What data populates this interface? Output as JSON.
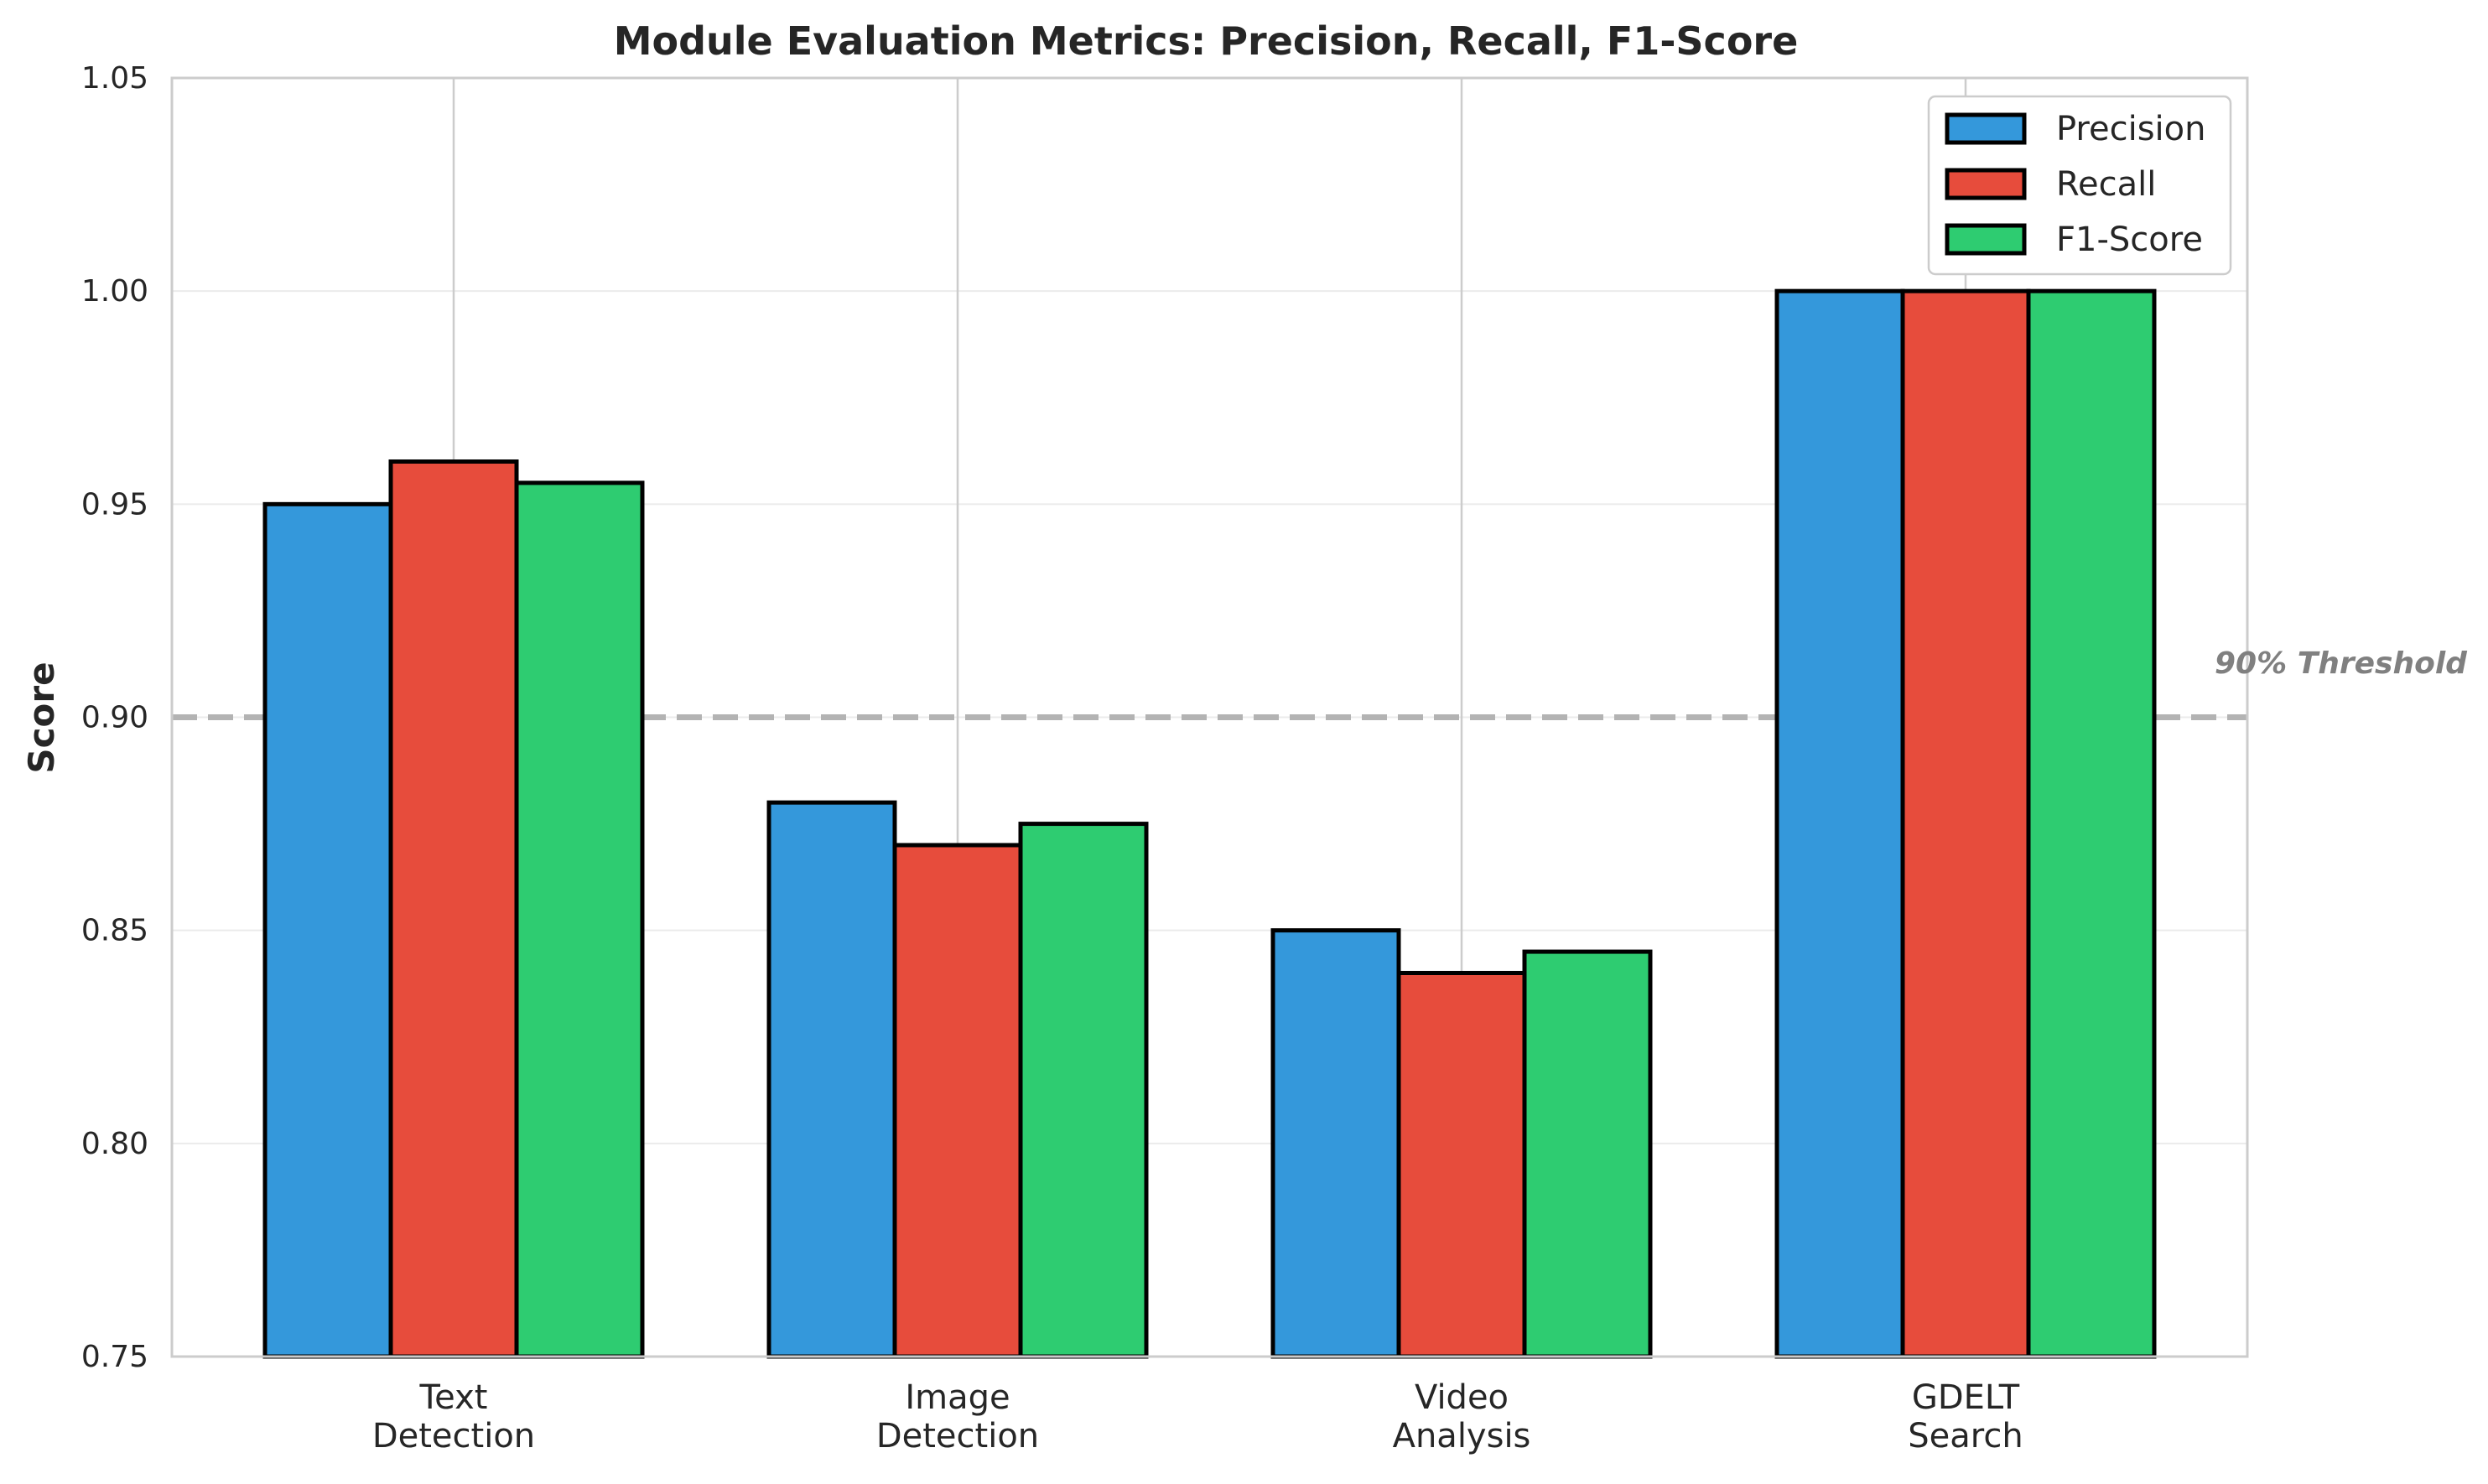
{
  "chart_data": {
    "type": "bar",
    "title": "Module Evaluation Metrics: Precision, Recall, F1-Score",
    "xlabel": "",
    "ylabel": "Score",
    "ylim": [
      0.75,
      1.05
    ],
    "yticks": [
      "0.75",
      "0.80",
      "0.85",
      "0.90",
      "0.95",
      "1.00",
      "1.05"
    ],
    "categories": [
      [
        "Text",
        "Detection"
      ],
      [
        "Image",
        "Detection"
      ],
      [
        "Video",
        "Analysis"
      ],
      [
        "GDELT",
        "Search"
      ]
    ],
    "series": [
      {
        "name": "Precision",
        "color": "#3498db",
        "values": [
          0.95,
          0.88,
          0.85,
          1.0
        ]
      },
      {
        "name": "Recall",
        "color": "#e74c3c",
        "values": [
          0.96,
          0.87,
          0.84,
          1.0
        ]
      },
      {
        "name": "F1-Score",
        "color": "#2ecc71",
        "values": [
          0.955,
          0.875,
          0.845,
          1.0
        ]
      }
    ],
    "threshold": {
      "value": 0.9,
      "label": "90% Threshold",
      "color": "#b3b3b3"
    },
    "grid": true,
    "legend": {
      "placement": "top-right"
    }
  }
}
